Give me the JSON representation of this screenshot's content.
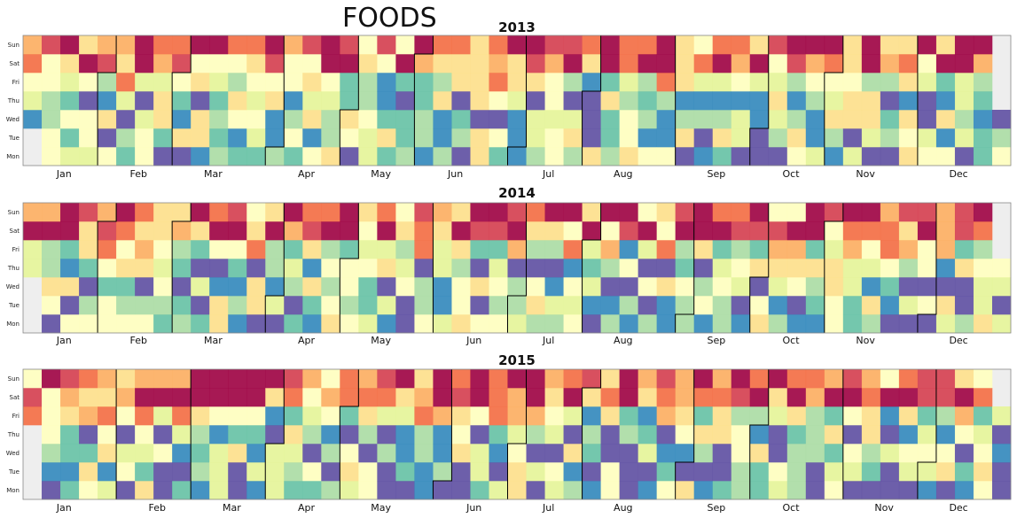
{
  "title": "FOODS",
  "chart_data": {
    "type": "heatmap",
    "weekday_labels": [
      "Sun",
      "Sat",
      "Fri",
      "Thu",
      "Wed",
      "Tue",
      "Mon"
    ],
    "month_labels": [
      "Jan",
      "Feb",
      "Mar",
      "Apr",
      "May",
      "Jun",
      "Jul",
      "Aug",
      "Sep",
      "Oct",
      "Nov",
      "Dec"
    ],
    "colormap": [
      "#5e4fa2",
      "#3288bd",
      "#66c2a5",
      "#abdda4",
      "#e6f598",
      "#ffffbf",
      "#fee08b",
      "#fdae61",
      "#f46d43",
      "#d53e4f",
      "#9e0142"
    ],
    "empty_color": "#eeeeee",
    "years": [
      {
        "year": "2013",
        "start_weekday": 2,
        "days_in_year": 365
      },
      {
        "year": "2014",
        "start_weekday": 3,
        "days_in_year": 365
      },
      {
        "year": "2015",
        "start_weekday": 4,
        "days_in_year": 365
      }
    ]
  }
}
